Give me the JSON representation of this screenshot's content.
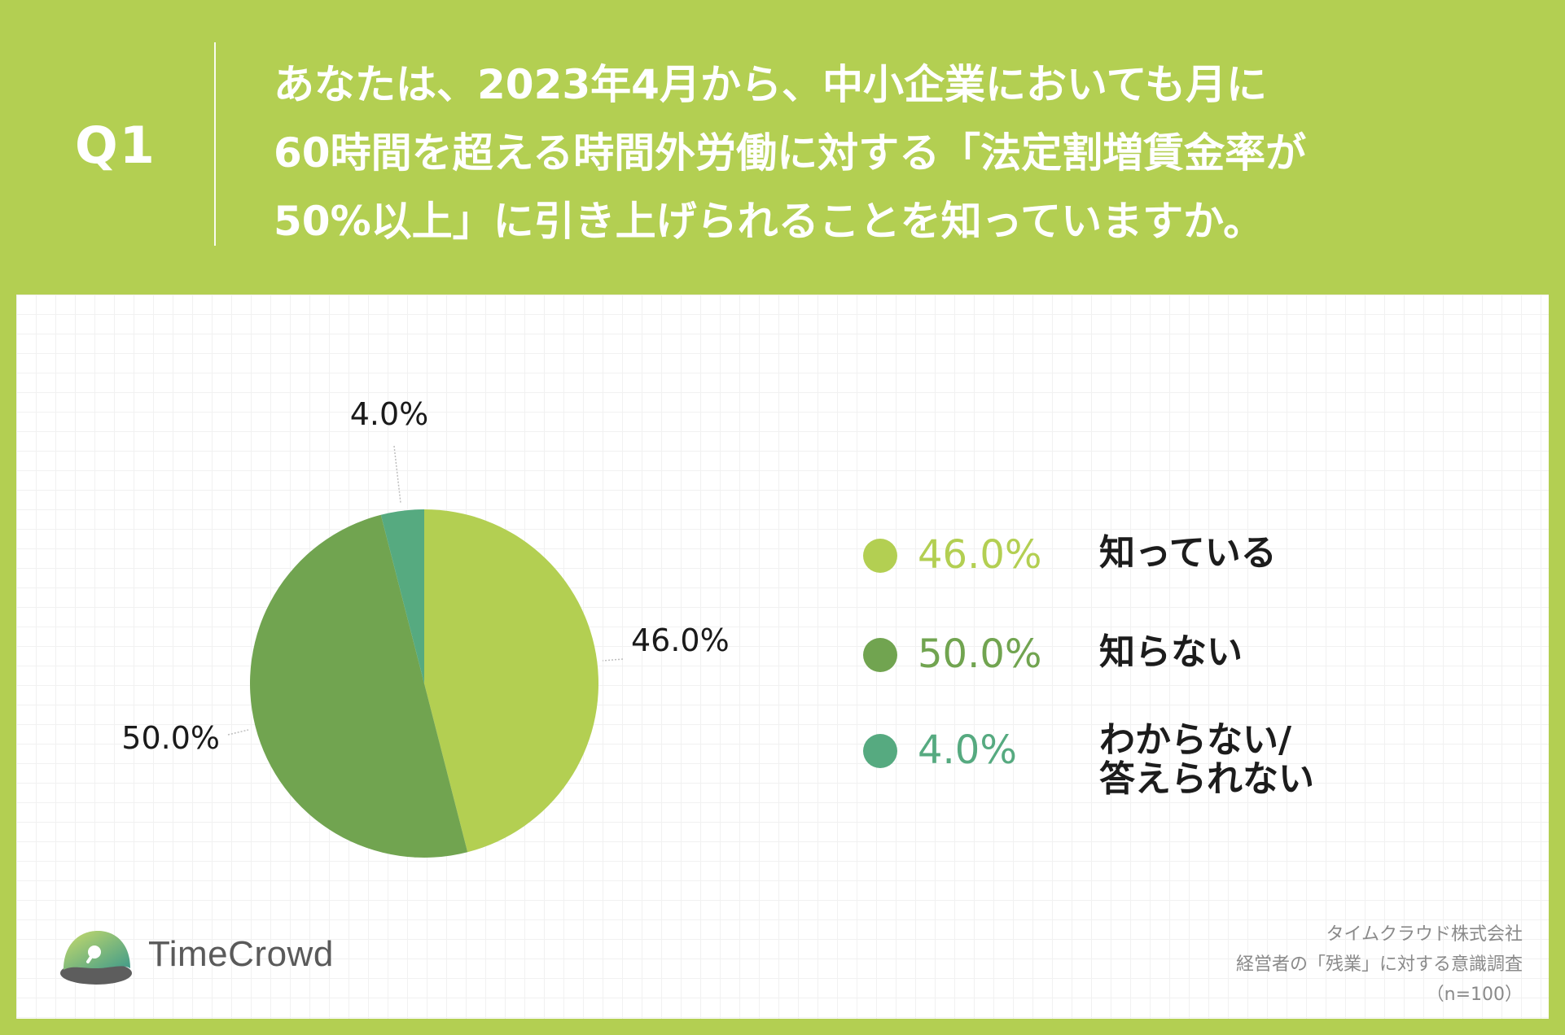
{
  "header": {
    "question_number": "Q1",
    "question_lines": [
      "あなたは、2023年4月から、中小企業においても月に",
      "60時間を超える時間外労働に対する「法定割増賃金率が",
      "50%以上」に引き上げられることを知っていますか。"
    ]
  },
  "chart_data": {
    "type": "pie",
    "start_angle_deg": 0,
    "direction": "clockwise",
    "series": [
      {
        "name": "知っている",
        "value": 46.0,
        "label": "46.0%",
        "color": "#b3cf52"
      },
      {
        "name": "知らない",
        "value": 50.0,
        "label": "50.0%",
        "color": "#71a450"
      },
      {
        "name": "わからない/\n答えられない",
        "value": 4.0,
        "label": "4.0%",
        "color": "#56aa80"
      }
    ],
    "legend_position": "right"
  },
  "brand": {
    "name": "TimeCrowd"
  },
  "source": {
    "company": "タイムクラウド株式会社",
    "survey": "経営者の「残業」に対する意識調査",
    "sample": "（n=100）"
  }
}
